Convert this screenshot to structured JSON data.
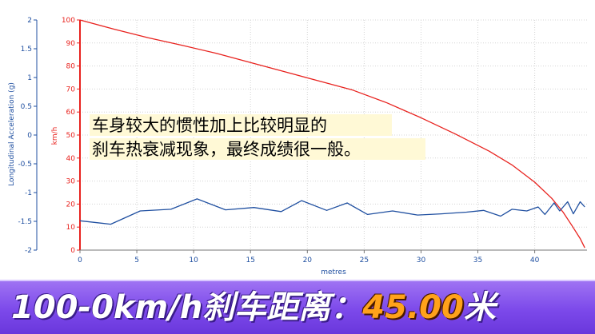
{
  "chart_data": {
    "type": "line",
    "xlabel": "metres",
    "x_axis": {
      "range": [
        0,
        44.6
      ],
      "ticks": [
        0,
        5,
        10,
        15,
        20,
        25,
        30,
        35,
        40
      ]
    },
    "left_axis": {
      "label": "Longitudinal Acceleration (g)",
      "color": "#1f4fa0",
      "range": [
        -2,
        2
      ],
      "ticks": [
        -2,
        -1.5,
        -1,
        -0.5,
        0,
        0.5,
        1,
        1.5,
        2
      ],
      "tick_labels": [
        "-2",
        "-1.5",
        "-1",
        "-0.5",
        "0",
        "0.5",
        "1",
        "1.5",
        "2"
      ]
    },
    "right_axis": {
      "label": "km/h",
      "color": "#e8221e",
      "range": [
        0,
        100
      ],
      "ticks": [
        0,
        10,
        20,
        30,
        40,
        50,
        60,
        70,
        80,
        90,
        100
      ],
      "tick_labels": [
        "0",
        "10",
        "20",
        "30",
        "40",
        "50",
        "60",
        "70",
        "80",
        "90",
        "100"
      ]
    },
    "grid": true,
    "series": [
      {
        "axis": "right",
        "color": "#e8221e",
        "x": [
          0,
          3,
          6,
          9,
          12,
          15,
          18,
          21,
          24,
          27,
          30,
          33,
          36,
          38,
          40,
          41.5,
          42.5,
          43.3,
          44,
          44.4
        ],
        "y": [
          100,
          96,
          92.3,
          89,
          85.5,
          81.5,
          77.5,
          73.5,
          69.5,
          64,
          57.5,
          50.5,
          43,
          37,
          29.5,
          22.5,
          16.5,
          10.5,
          5,
          1
        ]
      },
      {
        "axis": "left",
        "color": "#1f4fa0",
        "x": [
          0,
          2.7,
          5.3,
          8,
          10.3,
          12.8,
          15.3,
          17.7,
          19.5,
          21.7,
          23.5,
          25.3,
          27.5,
          29.7,
          31.8,
          34,
          35.5,
          37,
          38,
          39.3,
          40.3,
          40.9,
          41.7,
          42.2,
          42.9,
          43.4,
          44,
          44.4
        ],
        "y": [
          -1.49,
          -1.55,
          -1.32,
          -1.29,
          -1.11,
          -1.3,
          -1.26,
          -1.33,
          -1.14,
          -1.31,
          -1.18,
          -1.38,
          -1.32,
          -1.39,
          -1.37,
          -1.34,
          -1.31,
          -1.41,
          -1.29,
          -1.32,
          -1.25,
          -1.38,
          -1.18,
          -1.32,
          -1.16,
          -1.37,
          -1.16,
          -1.25
        ]
      }
    ],
    "annotation": {
      "lines": [
        "车身较大的惯性加上比较明显的",
        "刹车热衰减现象，最终成绩很一般。"
      ]
    }
  },
  "banner": {
    "prefix": "100-0km/h刹车距离：",
    "value": "45.00",
    "unit": "米"
  }
}
